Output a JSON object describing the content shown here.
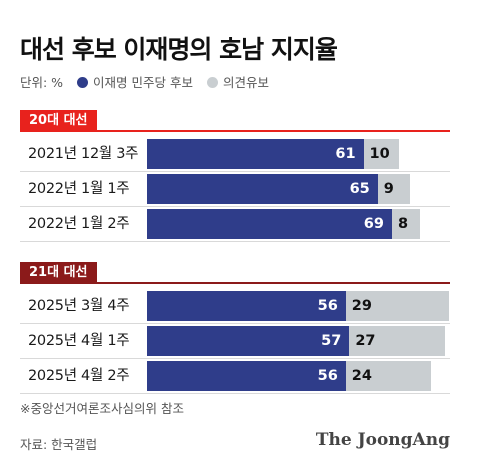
{
  "title": "대선 후보 이재명의 호남 지지율",
  "legend": {
    "unit": "단위: %",
    "series": [
      {
        "label": "이재명 민주당 후보",
        "color": "#2f3d8a"
      },
      {
        "label": "의견유보",
        "color": "#c9ced1"
      }
    ]
  },
  "chart_data": {
    "type": "bar",
    "orientation": "horizontal",
    "stacked": true,
    "unit": "%",
    "groups": [
      {
        "label": "20대 대선",
        "color": "#e8221d",
        "categories": [
          "2021년 12월 3주",
          "2022년 1월 1주",
          "2022년 1월 2주"
        ],
        "series": [
          {
            "name": "이재명 민주당 후보",
            "values": [
              61,
              65,
              69
            ]
          },
          {
            "name": "의견유보",
            "values": [
              10,
              9,
              8
            ]
          }
        ]
      },
      {
        "label": "21대 대선",
        "color": "#8b1a1a",
        "categories": [
          "2025년 3월 4주",
          "2025년 4월 1주",
          "2025년 4월 2주"
        ],
        "series": [
          {
            "name": "이재명 민주당 후보",
            "values": [
              56,
              57,
              56
            ]
          },
          {
            "name": "의견유보",
            "values": [
              29,
              27,
              24
            ]
          }
        ]
      }
    ]
  },
  "note": "※중앙선거여론조사심의위 참조",
  "source": "자료: 한국갤럽",
  "logo": "The JoongAng"
}
